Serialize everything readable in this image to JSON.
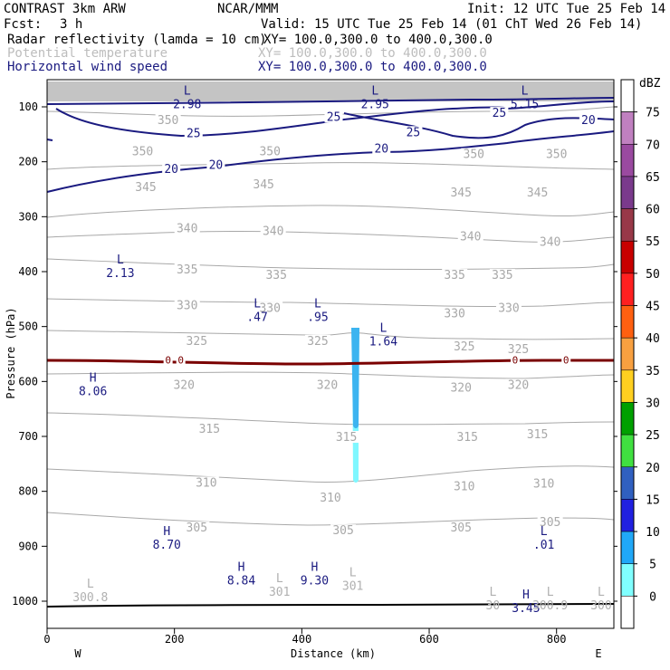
{
  "header": {
    "model": "CONTRAST  3km ARW",
    "center": "NCAR/MMM",
    "init": "Init: 12 UTC Tue 25 Feb 14",
    "fcst_label": "Fcst:",
    "fcst_value": "3 h",
    "valid": "Valid: 15 UTC Tue 25 Feb 14 (01 ChT Wed 26 Feb 14)",
    "fields": [
      {
        "name": "Radar reflectivity (lamda = 10 cm)",
        "xy": "XY= 100.0,300.0 to 400.0,300.0",
        "color": "#000000"
      },
      {
        "name": "Potential temperature",
        "xy": "XY= 100.0,300.0 to 400.0,300.0",
        "color": "#bdbdbd"
      },
      {
        "name": "Horizontal wind speed",
        "xy": "XY= 100.0,300.0 to 400.0,300.0",
        "color": "#1a1a80"
      }
    ]
  },
  "colors": {
    "theta": "#a8a8a8",
    "wind": "#1a1a80",
    "freezing": "#7a0000",
    "refl_light": "#7ff7ff",
    "refl_mid": "#3cb4f0"
  },
  "chart_data": {
    "type": "cross-section",
    "xlabel": "Distance (km)",
    "ylabel": "Pressure (hPa)",
    "xlim": [
      0,
      890
    ],
    "ylim": [
      1050,
      60
    ],
    "x_ticks": [
      0,
      200,
      400,
      600,
      800
    ],
    "y_ticks": [
      100,
      200,
      300,
      400,
      500,
      600,
      700,
      800,
      900,
      1000
    ],
    "x_end_labels": {
      "left": "W",
      "right": "E"
    },
    "colorbar": {
      "unit": "dBZ",
      "levels": [
        {
          "label": "75",
          "color": "#c080c0"
        },
        {
          "label": "70",
          "color": "#9a4aa0"
        },
        {
          "label": "65",
          "color": "#7a3a8c"
        },
        {
          "label": "60",
          "color": "#983848"
        },
        {
          "label": "55",
          "color": "#c80000"
        },
        {
          "label": "50",
          "color": "#ff2020"
        },
        {
          "label": "45",
          "color": "#ff6010"
        },
        {
          "label": "40",
          "color": "#f8a040"
        },
        {
          "label": "35",
          "color": "#ffd020"
        },
        {
          "label": "30",
          "color": "#00a000"
        },
        {
          "label": "25",
          "color": "#40e040"
        },
        {
          "label": "20",
          "color": "#3060c0"
        },
        {
          "label": "15",
          "color": "#2020e0"
        },
        {
          "label": "10",
          "color": "#20a8f8"
        },
        {
          "label": "5",
          "color": "#80ffff"
        },
        {
          "label": "0",
          "color": "#ffffff"
        }
      ]
    },
    "theta_labels": [
      {
        "text": "350",
        "x": 190,
        "p": 128
      },
      {
        "text": "350",
        "x": 150,
        "p": 185
      },
      {
        "text": "350",
        "x": 350,
        "p": 185
      },
      {
        "text": "350",
        "x": 670,
        "p": 190
      },
      {
        "text": "350",
        "x": 800,
        "p": 190
      },
      {
        "text": "345",
        "x": 155,
        "p": 250
      },
      {
        "text": "345",
        "x": 340,
        "p": 245
      },
      {
        "text": "345",
        "x": 650,
        "p": 260
      },
      {
        "text": "345",
        "x": 770,
        "p": 260
      },
      {
        "text": "340",
        "x": 220,
        "p": 325
      },
      {
        "text": "340",
        "x": 355,
        "p": 330
      },
      {
        "text": "340",
        "x": 665,
        "p": 340
      },
      {
        "text": "340",
        "x": 790,
        "p": 350
      },
      {
        "text": "335",
        "x": 220,
        "p": 400
      },
      {
        "text": "335",
        "x": 360,
        "p": 410
      },
      {
        "text": "335",
        "x": 640,
        "p": 410
      },
      {
        "text": "335",
        "x": 715,
        "p": 410
      },
      {
        "text": "330",
        "x": 220,
        "p": 465
      },
      {
        "text": "330",
        "x": 350,
        "p": 470
      },
      {
        "text": "330",
        "x": 640,
        "p": 480
      },
      {
        "text": "330",
        "x": 725,
        "p": 470
      },
      {
        "text": "325",
        "x": 235,
        "p": 530
      },
      {
        "text": "325",
        "x": 425,
        "p": 530
      },
      {
        "text": "325",
        "x": 655,
        "p": 540
      },
      {
        "text": "325",
        "x": 740,
        "p": 545
      },
      {
        "text": "320",
        "x": 215,
        "p": 610
      },
      {
        "text": "320",
        "x": 440,
        "p": 610
      },
      {
        "text": "320",
        "x": 650,
        "p": 615
      },
      {
        "text": "320",
        "x": 740,
        "p": 610
      },
      {
        "text": "315",
        "x": 255,
        "p": 690
      },
      {
        "text": "315",
        "x": 470,
        "p": 705
      },
      {
        "text": "315",
        "x": 660,
        "p": 705
      },
      {
        "text": "315",
        "x": 770,
        "p": 700
      },
      {
        "text": "310",
        "x": 250,
        "p": 788
      },
      {
        "text": "310",
        "x": 445,
        "p": 815
      },
      {
        "text": "310",
        "x": 655,
        "p": 795
      },
      {
        "text": "310",
        "x": 780,
        "p": 790
      },
      {
        "text": "305",
        "x": 235,
        "p": 870
      },
      {
        "text": "305",
        "x": 465,
        "p": 875
      },
      {
        "text": "305",
        "x": 650,
        "p": 870
      },
      {
        "text": "305",
        "x": 790,
        "p": 860
      }
    ],
    "wind_labels": [
      {
        "text": "25",
        "x": 230,
        "p": 152
      },
      {
        "text": "25",
        "x": 450,
        "p": 122
      },
      {
        "text": "25",
        "x": 575,
        "p": 150
      },
      {
        "text": "25",
        "x": 710,
        "p": 115
      },
      {
        "text": "20",
        "x": 195,
        "p": 217
      },
      {
        "text": "20",
        "x": 265,
        "p": 210
      },
      {
        "text": "20",
        "x": 525,
        "p": 180
      },
      {
        "text": "20",
        "x": 850,
        "p": 128
      }
    ],
    "extrema": [
      {
        "kind": "L",
        "value": "2.98",
        "x": 220,
        "p": 78,
        "color": "#1a1a80"
      },
      {
        "kind": "L",
        "value": "2.95",
        "x": 515,
        "p": 78,
        "color": "#1a1a80"
      },
      {
        "kind": "L",
        "value": "5.15",
        "x": 750,
        "p": 78,
        "color": "#1a1a80"
      },
      {
        "kind": "L",
        "value": "2.13",
        "x": 115,
        "p": 385,
        "color": "#1a1a80"
      },
      {
        "kind": "L",
        "value": ".47",
        "x": 330,
        "p": 465,
        "color": "#1a1a80"
      },
      {
        "kind": "L",
        "value": ".95",
        "x": 425,
        "p": 465,
        "color": "#1a1a80"
      },
      {
        "kind": "L",
        "value": "1.64",
        "x": 528,
        "p": 510,
        "color": "#1a1a80"
      },
      {
        "kind": "H",
        "value": "8.06",
        "x": 72,
        "p": 600,
        "color": "#1a1a80"
      },
      {
        "kind": "H",
        "value": "8.70",
        "x": 188,
        "p": 880,
        "color": "#1a1a80"
      },
      {
        "kind": "L",
        "value": ".01",
        "x": 780,
        "p": 880,
        "color": "#1a1a80"
      },
      {
        "kind": "H",
        "value": "8.84",
        "x": 305,
        "p": 945,
        "color": "#1a1a80"
      },
      {
        "kind": "H",
        "value": "9.30",
        "x": 420,
        "p": 945,
        "color": "#1a1a80"
      },
      {
        "kind": "L",
        "value": "301",
        "x": 365,
        "p": 965,
        "color": "#b0b0b0"
      },
      {
        "kind": "L",
        "value": "301",
        "x": 480,
        "p": 955,
        "color": "#b0b0b0"
      },
      {
        "kind": "L",
        "value": "300.8",
        "x": 68,
        "p": 975,
        "color": "#b0b0b0"
      },
      {
        "kind": "L",
        "value": "30",
        "x": 700,
        "p": 990,
        "color": "#b0b0b0"
      },
      {
        "kind": "H",
        "value": "3.45",
        "x": 752,
        "p": 995,
        "color": "#1a1a80"
      },
      {
        "kind": "L",
        "value": "300.9",
        "x": 790,
        "p": 990,
        "color": "#b0b0b0"
      },
      {
        "kind": "L",
        "value": "300",
        "x": 870,
        "p": 990,
        "color": "#b0b0b0"
      }
    ],
    "freezing_level": {
      "label": "0",
      "p": 562,
      "label_x": [
        190,
        210,
        735,
        815
      ]
    }
  }
}
